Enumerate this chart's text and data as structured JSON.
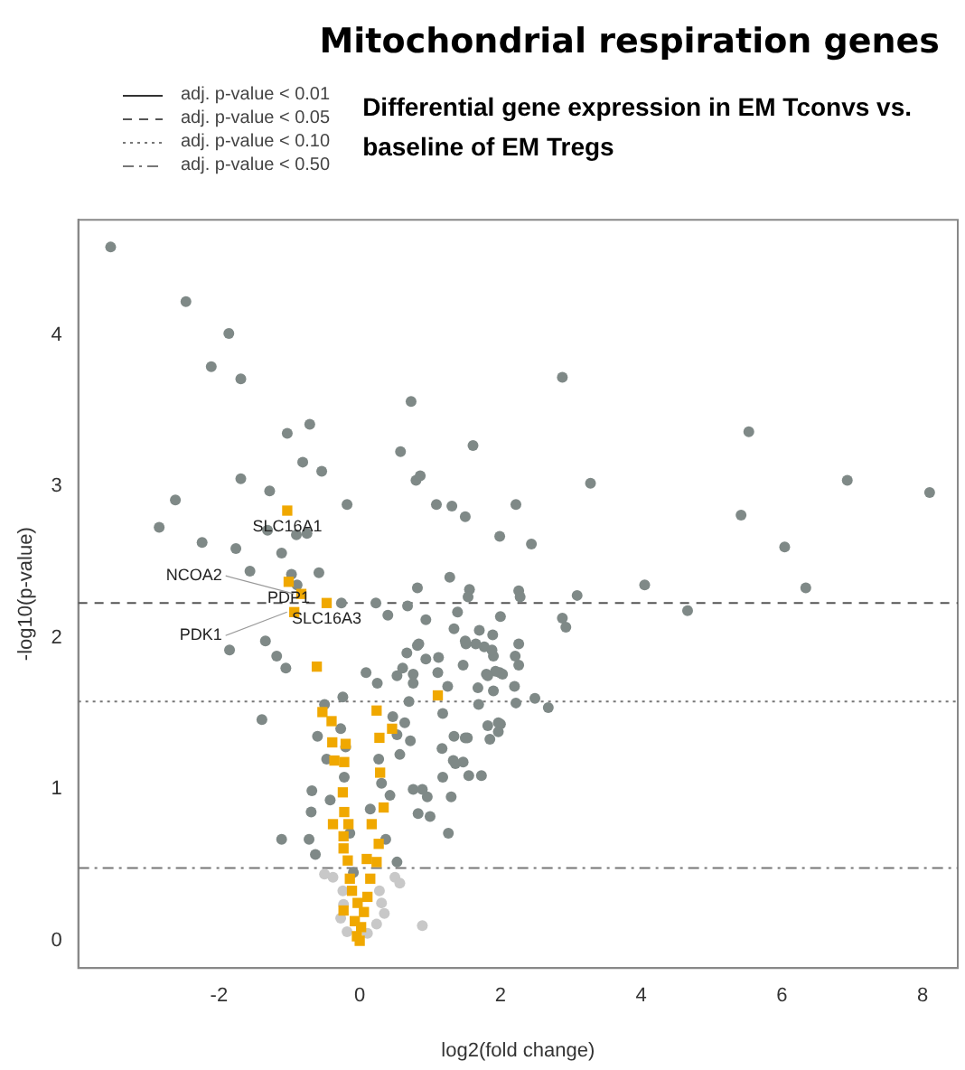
{
  "chart_data": {
    "type": "scatter",
    "title": "Mitochondrial respiration genes",
    "subtitle": "Differential gene expression in EM Tconvs vs. baseline of EM Tregs",
    "xlabel": "log2(fold change)",
    "ylabel": "-log10(p-value)",
    "xlim": [
      -4,
      8.5
    ],
    "ylim": [
      -0.18,
      4.76
    ],
    "xticks": [
      -2,
      0,
      2,
      4,
      6,
      8
    ],
    "yticks": [
      0,
      1,
      2,
      3,
      4
    ],
    "grid": false,
    "legend": "top left",
    "ref_lines": [
      {
        "axis": "y",
        "value": null,
        "label": "adj. p-value < 0.01",
        "line_style": "solid",
        "color": "#333333"
      },
      {
        "axis": "y",
        "value": 2.23,
        "label": "adj. p-value < 0.05",
        "line_style": "dashed",
        "color": "#555555"
      },
      {
        "axis": "y",
        "value": 1.58,
        "label": "adj. p-value < 0.10",
        "line_style": "dotted",
        "color": "#777777"
      },
      {
        "axis": "y",
        "value": 0.48,
        "label": "adj. p-value < 0.50",
        "line_style": "dashdot",
        "color": "#777777"
      }
    ],
    "series": [
      {
        "color": "#c8c8c8",
        "marker": "circle",
        "x": [
          -0.5,
          -0.38,
          -0.24,
          -0.23,
          -0.27,
          -0.18,
          0.28,
          0.31,
          0.24,
          0.35,
          0.5,
          0.57,
          0.89,
          0.11
        ],
        "values": [
          0.44,
          0.42,
          0.33,
          0.24,
          0.15,
          0.06,
          0.33,
          0.25,
          0.11,
          0.18,
          0.42,
          0.38,
          0.1,
          0.05
        ]
      },
      {
        "color": "#7f8987",
        "marker": "circle",
        "x": [
          -3.54,
          -2.47,
          -1.86,
          -2.11,
          -1.69,
          -1.03,
          -0.71,
          0.58,
          0.73,
          -0.81,
          -0.54,
          -1.69,
          0.8,
          0.86,
          1.61,
          -2.62,
          -1.28,
          -0.18,
          1.09,
          1.31,
          1.5,
          2.22,
          -2.85,
          -2.24,
          -1.76,
          -1.31,
          -0.9,
          -0.75,
          -1.11,
          1.99,
          -1.56,
          -0.97,
          -0.58,
          -0.89,
          1.28,
          0.82,
          1.56,
          1.54,
          2.26,
          2.28,
          0.23,
          0.68,
          1.39,
          2.0,
          0.4,
          -0.26,
          0.94,
          2.88,
          5.53,
          3.28,
          6.93,
          8.1,
          2.44,
          5.42,
          6.04,
          6.34,
          4.05,
          4.66,
          3.09,
          2.88,
          2.93,
          -1.85,
          -1.34,
          -1.18,
          -1.05,
          -1.39,
          -1.11,
          -0.68,
          -0.69,
          -0.72,
          -0.63,
          -0.42,
          -0.6,
          -0.47,
          -0.5,
          -0.24,
          -0.27,
          -0.22,
          -0.14,
          0.09,
          0.25,
          0.47,
          0.53,
          0.27,
          0.31,
          0.43,
          0.15,
          0.37,
          0.53,
          0.76,
          0.96,
          1.0,
          0.83,
          1.26,
          1.18,
          1.36,
          1.47,
          1.73,
          1.53,
          1.82,
          2.0,
          1.8,
          1.99,
          1.9,
          1.77,
          1.51,
          1.47,
          1.25,
          1.11,
          0.94,
          0.82,
          0.67,
          0.53,
          0.61,
          0.76,
          0.7,
          0.64,
          0.72,
          0.57,
          -0.2,
          -0.09,
          1.12,
          0.84,
          1.68,
          1.9,
          2.2,
          2.49,
          2.68,
          2.22,
          1.69,
          1.18,
          1.97,
          1.97,
          1.85,
          1.34,
          1.5,
          1.17,
          1.33,
          1.55,
          1.3,
          0.89,
          2.26,
          2.21,
          2.26,
          2.03,
          1.93,
          1.82,
          1.88,
          1.89,
          1.7,
          1.65,
          1.5,
          1.34,
          0.76
        ],
        "values": [
          4.58,
          4.22,
          4.01,
          3.79,
          3.71,
          3.35,
          3.41,
          3.23,
          3.56,
          3.16,
          3.1,
          3.05,
          3.04,
          3.07,
          3.27,
          2.91,
          2.97,
          2.88,
          2.88,
          2.87,
          2.8,
          2.88,
          2.73,
          2.63,
          2.59,
          2.71,
          2.68,
          2.69,
          2.56,
          2.67,
          2.44,
          2.42,
          2.43,
          2.35,
          2.4,
          2.33,
          2.32,
          2.27,
          2.31,
          2.27,
          2.23,
          2.21,
          2.17,
          2.14,
          2.15,
          2.23,
          2.12,
          3.72,
          3.36,
          3.02,
          3.04,
          2.96,
          2.62,
          2.81,
          2.6,
          2.33,
          2.35,
          2.18,
          2.28,
          2.13,
          2.07,
          1.92,
          1.98,
          1.88,
          1.8,
          1.46,
          0.67,
          0.99,
          0.85,
          0.67,
          0.57,
          0.93,
          1.35,
          1.2,
          1.56,
          1.61,
          1.4,
          1.08,
          0.71,
          1.77,
          1.7,
          1.48,
          1.36,
          1.2,
          1.04,
          0.96,
          0.87,
          0.67,
          0.52,
          1.0,
          0.95,
          0.82,
          0.84,
          0.71,
          1.08,
          1.17,
          1.18,
          1.09,
          1.34,
          1.42,
          1.43,
          1.76,
          1.77,
          1.88,
          1.94,
          1.96,
          1.82,
          1.68,
          1.77,
          1.86,
          1.95,
          1.9,
          1.75,
          1.8,
          1.7,
          1.58,
          1.44,
          1.32,
          1.23,
          1.28,
          0.45,
          1.87,
          1.96,
          1.67,
          1.65,
          1.68,
          1.6,
          1.54,
          1.57,
          1.56,
          1.5,
          1.44,
          1.38,
          1.33,
          1.35,
          1.34,
          1.27,
          1.19,
          1.09,
          0.95,
          1.0,
          1.82,
          1.88,
          1.96,
          1.76,
          1.78,
          1.75,
          1.92,
          2.02,
          2.05,
          1.96,
          1.98,
          2.06,
          1.76
        ]
      },
      {
        "color": "#f0a800",
        "marker": "square",
        "x": [
          -1.03,
          -1.01,
          -0.83,
          -0.47,
          -0.93,
          1.11,
          -0.61,
          -0.53,
          -0.4,
          -0.39,
          -0.2,
          -0.36,
          -0.22,
          -0.24,
          -0.22,
          -0.38,
          -0.16,
          -0.23,
          -0.23,
          -0.17,
          0.24,
          0.46,
          0.28,
          0.29,
          0.34,
          0.17,
          0.27,
          0.24,
          0.1,
          0.15,
          -0.14,
          -0.11,
          0.11,
          -0.03,
          -0.23,
          0.06,
          -0.07,
          0.02,
          -0.04,
          0.0
        ],
        "values": [
          2.84,
          2.37,
          2.29,
          2.23,
          2.17,
          1.62,
          1.81,
          1.51,
          1.45,
          1.31,
          1.3,
          1.19,
          1.18,
          0.98,
          0.85,
          0.77,
          0.77,
          0.69,
          0.61,
          0.53,
          1.52,
          1.4,
          1.34,
          1.11,
          0.88,
          0.77,
          0.64,
          0.52,
          0.54,
          0.41,
          0.41,
          0.33,
          0.29,
          0.25,
          0.2,
          0.19,
          0.13,
          0.09,
          0.03,
          0.0
        ]
      }
    ],
    "annotations": [
      {
        "text": "SLC16A1",
        "x": -1.03,
        "y": 2.84
      },
      {
        "text": "PDP1",
        "x": -1.01,
        "y": 2.37
      },
      {
        "text": "NCOA2",
        "x": -0.83,
        "y": 2.29
      },
      {
        "text": "SLC16A3",
        "x": -0.47,
        "y": 2.23
      },
      {
        "text": "PDK1",
        "x": -0.93,
        "y": 2.17
      }
    ]
  }
}
